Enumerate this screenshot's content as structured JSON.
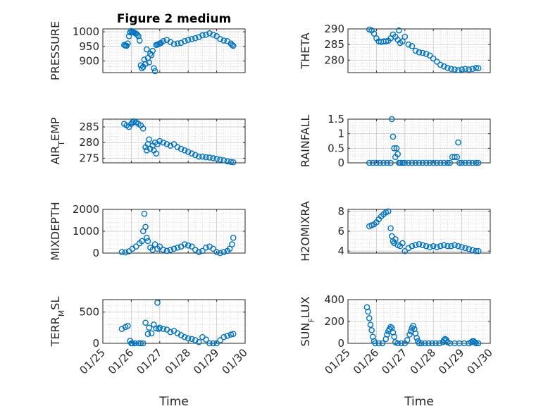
{
  "colors": {
    "marker": "#0072BD",
    "axis": "#262626",
    "grid": "#c8c8c8"
  },
  "time_ticks": [
    "01/25",
    "01/26",
    "01/27",
    "01/28",
    "01/29",
    "01/30"
  ],
  "time_xlabel": "Time",
  "chart_data": [
    {
      "type": "scatter",
      "title": "Figure 2 medium",
      "ylabel": "PRESSURE",
      "ylim": [
        860,
        1010
      ],
      "yticks": [
        900,
        950,
        1000
      ],
      "xlabel": "",
      "x": [
        "01/25 18:00",
        "01/25 19:00",
        "01/25 20:00",
        "01/25 21:00",
        "01/25 22:00",
        "01/25 23:00",
        "01/26 00:00",
        "01/26 01:00",
        "01/26 02:00",
        "01/26 03:00",
        "01/26 04:00",
        "01/26 05:00",
        "01/26 06:00",
        "01/26 07:00",
        "01/26 08:00",
        "01/26 09:00",
        "01/26 10:00",
        "01/26 11:00",
        "01/26 12:00",
        "01/26 13:00",
        "01/26 14:00",
        "01/26 15:00",
        "01/26 16:00",
        "01/26 17:00",
        "01/26 18:00",
        "01/26 19:00",
        "01/26 20:00",
        "01/26 21:00",
        "01/26 22:00",
        "01/26 23:00",
        "01/27 00:00",
        "01/27 01:00",
        "01/27 03:00",
        "01/27 06:00",
        "01/27 09:00",
        "01/27 12:00",
        "01/27 15:00",
        "01/27 18:00",
        "01/27 21:00",
        "01/28 00:00",
        "01/28 03:00",
        "01/28 06:00",
        "01/28 09:00",
        "01/28 12:00",
        "01/28 15:00",
        "01/28 18:00",
        "01/28 21:00",
        "01/29 00:00",
        "01/29 03:00",
        "01/29 06:00",
        "01/29 09:00",
        "01/29 12:00",
        "01/29 13:00",
        "01/29 14:00"
      ],
      "y": [
        955,
        953,
        952,
        960,
        985,
        998,
        1003,
        1000,
        998,
        996,
        994,
        990,
        985,
        970,
        885,
        875,
        880,
        905,
        890,
        940,
        910,
        895,
        925,
        920,
        935,
        875,
        865,
        955,
        956,
        958,
        960,
        962,
        968,
        972,
        965,
        958,
        960,
        962,
        968,
        972,
        975,
        978,
        982,
        988,
        990,
        995,
        990,
        985,
        975,
        970,
        968,
        960,
        955,
        952
      ]
    },
    {
      "type": "scatter",
      "title": "",
      "ylabel": "THETA",
      "ylim": [
        276,
        290
      ],
      "yticks": [
        280,
        285,
        290
      ],
      "xlabel": "",
      "x": [
        "01/25 18:00",
        "01/25 20:00",
        "01/25 22:00",
        "01/26 00:00",
        "01/26 02:00",
        "01/26 04:00",
        "01/26 06:00",
        "01/26 08:00",
        "01/26 10:00",
        "01/26 12:00",
        "01/26 14:00",
        "01/26 16:00",
        "01/26 18:00",
        "01/26 19:00",
        "01/26 20:00",
        "01/26 22:00",
        "01/27 00:00",
        "01/27 03:00",
        "01/27 06:00",
        "01/27 09:00",
        "01/27 12:00",
        "01/27 15:00",
        "01/27 18:00",
        "01/27 21:00",
        "01/28 00:00",
        "01/28 03:00",
        "01/28 06:00",
        "01/28 09:00",
        "01/28 12:00",
        "01/28 15:00",
        "01/28 18:00",
        "01/28 21:00",
        "01/29 00:00",
        "01/29 03:00",
        "01/29 06:00",
        "01/29 09:00",
        "01/29 12:00",
        "01/29 14:00"
      ],
      "y": [
        289.8,
        289.5,
        288.5,
        287.0,
        286.0,
        285.8,
        286.0,
        286.0,
        286.2,
        287.0,
        288.2,
        287.5,
        286.5,
        289.5,
        285.5,
        286.0,
        287.5,
        285.0,
        284.5,
        283.0,
        282.5,
        282.3,
        282.0,
        281.5,
        280.5,
        279.5,
        278.5,
        278.0,
        277.5,
        277.2,
        277.0,
        276.8,
        277.0,
        277.2,
        277.0,
        277.2,
        277.5,
        277.4
      ]
    },
    {
      "type": "scatter",
      "title": "",
      "ylabel": "AIR_TEMP",
      "ylim": [
        273.5,
        287.5
      ],
      "yticks": [
        275,
        280,
        285
      ],
      "xlabel": "",
      "x": [
        "01/25 18:00",
        "01/25 20:00",
        "01/25 22:00",
        "01/26 00:00",
        "01/26 01:00",
        "01/26 02:00",
        "01/26 04:00",
        "01/26 06:00",
        "01/26 08:00",
        "01/26 10:00",
        "01/26 12:00",
        "01/26 13:00",
        "01/26 14:00",
        "01/26 15:00",
        "01/26 16:00",
        "01/26 18:00",
        "01/26 19:00",
        "01/26 20:00",
        "01/26 21:00",
        "01/26 22:00",
        "01/27 00:00",
        "01/27 03:00",
        "01/27 06:00",
        "01/27 09:00",
        "01/27 12:00",
        "01/27 15:00",
        "01/27 18:00",
        "01/27 21:00",
        "01/28 00:00",
        "01/28 03:00",
        "01/28 06:00",
        "01/28 09:00",
        "01/28 12:00",
        "01/28 15:00",
        "01/28 18:00",
        "01/28 21:00",
        "01/29 00:00",
        "01/29 03:00",
        "01/29 06:00",
        "01/29 09:00",
        "01/29 12:00",
        "01/29 14:00"
      ],
      "y": [
        286.0,
        285.5,
        285.0,
        286.0,
        286.5,
        286.8,
        286.5,
        286.0,
        285.5,
        284.5,
        278.5,
        277.5,
        279.5,
        281.0,
        278.0,
        279.0,
        277.5,
        280.0,
        276.5,
        279.5,
        280.5,
        280.0,
        279.5,
        279.0,
        279.5,
        278.5,
        278.0,
        277.5,
        277.0,
        276.5,
        276.0,
        275.5,
        275.5,
        275.3,
        275.2,
        275.0,
        274.8,
        274.5,
        274.3,
        274.0,
        273.8,
        273.7
      ]
    },
    {
      "type": "scatter",
      "title": "",
      "ylabel": "RAINFALL",
      "ylim": [
        0,
        1.5
      ],
      "yticks": [
        0,
        0.5,
        1,
        1.5
      ],
      "xlabel": "",
      "x": [
        "01/25 18:00",
        "01/25 21:00",
        "01/26 00:00",
        "01/26 03:00",
        "01/26 06:00",
        "01/26 09:00",
        "01/26 12:00",
        "01/26 13:00",
        "01/26 14:00",
        "01/26 15:00",
        "01/26 16:00",
        "01/26 17:00",
        "01/26 18:00",
        "01/26 19:00",
        "01/26 20:00",
        "01/26 22:00",
        "01/27 00:00",
        "01/27 03:00",
        "01/27 06:00",
        "01/27 09:00",
        "01/27 12:00",
        "01/27 15:00",
        "01/27 18:00",
        "01/27 21:00",
        "01/28 00:00",
        "01/28 03:00",
        "01/28 06:00",
        "01/28 09:00",
        "01/28 12:00",
        "01/28 14:00",
        "01/28 16:00",
        "01/28 18:00",
        "01/28 20:00",
        "01/28 21:00",
        "01/28 22:00",
        "01/29 00:00",
        "01/29 03:00",
        "01/29 06:00",
        "01/29 09:00",
        "01/29 12:00",
        "01/29 14:00"
      ],
      "y": [
        0,
        0,
        0,
        0,
        0,
        0,
        0,
        1.5,
        0.9,
        0.5,
        0.2,
        0.5,
        0.3,
        0,
        0,
        0,
        0,
        0,
        0,
        0,
        0,
        0,
        0,
        0,
        0,
        0,
        0,
        0,
        0,
        0,
        0.2,
        0.2,
        0.2,
        0.7,
        0,
        0,
        0,
        0,
        0,
        0,
        0
      ]
    },
    {
      "type": "scatter",
      "title": "",
      "ylabel": "MIXDEPTH",
      "ylim": [
        0,
        2000
      ],
      "yticks": [
        0,
        1000,
        2000
      ],
      "xlabel": "",
      "x": [
        "01/25 16:00",
        "01/25 19:00",
        "01/25 22:00",
        "01/26 01:00",
        "01/26 04:00",
        "01/26 07:00",
        "01/26 09:00",
        "01/26 10:00",
        "01/26 11:00",
        "01/26 12:00",
        "01/26 13:00",
        "01/26 14:00",
        "01/26 16:00",
        "01/26 18:00",
        "01/26 20:00",
        "01/26 22:00",
        "01/27 00:00",
        "01/27 03:00",
        "01/27 06:00",
        "01/27 09:00",
        "01/27 12:00",
        "01/27 15:00",
        "01/27 18:00",
        "01/27 21:00",
        "01/28 00:00",
        "01/28 03:00",
        "01/28 06:00",
        "01/28 09:00",
        "01/28 12:00",
        "01/28 15:00",
        "01/28 18:00",
        "01/28 21:00",
        "01/29 00:00",
        "01/29 03:00",
        "01/29 06:00",
        "01/29 09:00",
        "01/29 11:00",
        "01/29 13:00",
        "01/29 14:00"
      ],
      "y": [
        50,
        30,
        80,
        200,
        300,
        450,
        550,
        1000,
        1800,
        1200,
        700,
        550,
        250,
        150,
        400,
        200,
        300,
        150,
        100,
        150,
        200,
        250,
        300,
        400,
        350,
        300,
        150,
        50,
        100,
        250,
        300,
        200,
        50,
        0,
        50,
        100,
        200,
        400,
        700
      ]
    },
    {
      "type": "scatter",
      "title": "",
      "ylabel": "H2OMIXRA",
      "ylim": [
        3.8,
        8.2
      ],
      "yticks": [
        4,
        6,
        8
      ],
      "xlabel": "",
      "x": [
        "01/25 18:00",
        "01/25 20:00",
        "01/25 22:00",
        "01/26 00:00",
        "01/26 02:00",
        "01/26 04:00",
        "01/26 06:00",
        "01/26 08:00",
        "01/26 10:00",
        "01/26 12:00",
        "01/26 13:00",
        "01/26 14:00",
        "01/26 15:00",
        "01/26 16:00",
        "01/26 18:00",
        "01/26 20:00",
        "01/26 22:00",
        "01/27 00:00",
        "01/27 03:00",
        "01/27 06:00",
        "01/27 09:00",
        "01/27 12:00",
        "01/27 15:00",
        "01/27 18:00",
        "01/27 21:00",
        "01/28 00:00",
        "01/28 03:00",
        "01/28 06:00",
        "01/28 09:00",
        "01/28 12:00",
        "01/28 15:00",
        "01/28 18:00",
        "01/28 21:00",
        "01/29 00:00",
        "01/29 03:00",
        "01/29 06:00",
        "01/29 09:00",
        "01/29 12:00",
        "01/29 14:00"
      ],
      "y": [
        6.5,
        6.6,
        6.7,
        6.9,
        7.2,
        7.5,
        7.7,
        7.9,
        8.0,
        6.3,
        5.5,
        5.0,
        4.8,
        5.2,
        4.6,
        4.5,
        4.8,
        4.0,
        4.3,
        4.5,
        4.6,
        4.7,
        4.6,
        4.5,
        4.4,
        4.5,
        4.4,
        4.5,
        4.6,
        4.5,
        4.5,
        4.6,
        4.5,
        4.4,
        4.3,
        4.2,
        4.1,
        4.0,
        4.0
      ]
    },
    {
      "type": "scatter",
      "title": "",
      "ylabel": "TERR_MSL",
      "ylim": [
        0,
        700
      ],
      "yticks": [
        0,
        500
      ],
      "xlabel": "Time",
      "x": [
        "01/25 16:00",
        "01/25 19:00",
        "01/25 21:00",
        "01/25 23:00",
        "01/26 00:00",
        "01/26 01:00",
        "01/26 03:00",
        "01/26 06:00",
        "01/26 08:00",
        "01/26 10:00",
        "01/26 12:00",
        "01/26 14:00",
        "01/26 15:00",
        "01/26 17:00",
        "01/26 19:00",
        "01/26 21:00",
        "01/26 22:00",
        "01/26 23:00",
        "01/27 00:00",
        "01/27 03:00",
        "01/27 06:00",
        "01/27 09:00",
        "01/27 12:00",
        "01/27 15:00",
        "01/27 18:00",
        "01/27 21:00",
        "01/28 00:00",
        "01/28 03:00",
        "01/28 06:00",
        "01/28 09:00",
        "01/28 12:00",
        "01/28 15:00",
        "01/28 18:00",
        "01/28 21:00",
        "01/29 00:00",
        "01/29 03:00",
        "01/29 06:00",
        "01/29 09:00",
        "01/29 12:00",
        "01/29 14:00"
      ],
      "y": [
        230,
        260,
        280,
        40,
        0,
        0,
        0,
        0,
        0,
        0,
        330,
        150,
        250,
        160,
        300,
        240,
        650,
        230,
        250,
        230,
        220,
        180,
        200,
        160,
        130,
        100,
        80,
        70,
        50,
        20,
        100,
        60,
        0,
        0,
        0,
        50,
        100,
        120,
        140,
        150
      ]
    },
    {
      "type": "scatter",
      "title": "",
      "ylabel": "SUN_FLUX",
      "ylim": [
        0,
        400
      ],
      "yticks": [
        0,
        200,
        400
      ],
      "xlabel": "Time",
      "x": [
        "01/25 16:00",
        "01/25 17:00",
        "01/25 18:00",
        "01/25 19:00",
        "01/25 20:00",
        "01/25 21:00",
        "01/25 22:00",
        "01/25 23:00",
        "01/26 02:00",
        "01/26 05:00",
        "01/26 08:00",
        "01/26 09:00",
        "01/26 10:00",
        "01/26 11:00",
        "01/26 12:00",
        "01/26 13:00",
        "01/26 14:00",
        "01/26 15:00",
        "01/26 16:00",
        "01/26 18:00",
        "01/26 21:00",
        "01/27 00:00",
        "01/27 02:00",
        "01/27 04:00",
        "01/27 05:00",
        "01/27 06:00",
        "01/27 07:00",
        "01/27 08:00",
        "01/27 09:00",
        "01/27 10:00",
        "01/27 11:00",
        "01/27 12:00",
        "01/27 14:00",
        "01/27 17:00",
        "01/27 20:00",
        "01/27 23:00",
        "01/28 02:00",
        "01/28 05:00",
        "01/28 08:00",
        "01/28 09:00",
        "01/28 10:00",
        "01/28 11:00",
        "01/28 12:00",
        "01/28 14:00",
        "01/28 18:00",
        "01/28 22:00",
        "01/29 02:00",
        "01/29 06:00",
        "01/29 08:00",
        "01/29 09:00",
        "01/29 10:00",
        "01/29 11:00",
        "01/29 12:00",
        "01/29 14:00"
      ],
      "y": [
        330,
        290,
        230,
        170,
        120,
        60,
        20,
        0,
        0,
        0,
        40,
        80,
        110,
        130,
        150,
        140,
        100,
        60,
        10,
        0,
        0,
        0,
        30,
        80,
        110,
        140,
        160,
        130,
        90,
        50,
        20,
        0,
        0,
        0,
        0,
        0,
        0,
        0,
        10,
        30,
        40,
        30,
        10,
        0,
        0,
        0,
        0,
        0,
        10,
        20,
        20,
        10,
        0,
        0
      ]
    }
  ]
}
